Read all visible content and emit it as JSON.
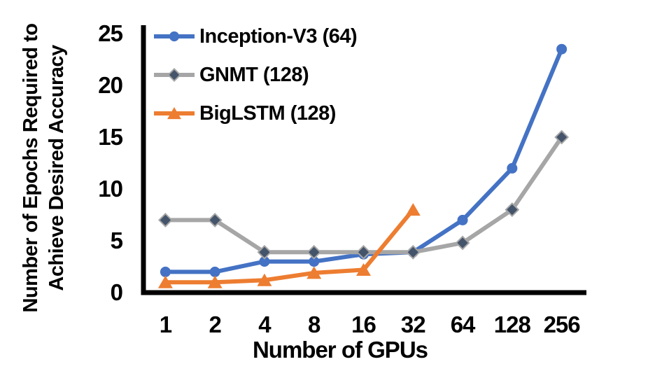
{
  "chart_data": {
    "type": "line",
    "title": "",
    "xlabel": "Number of GPUs",
    "ylabel": "Number of Epochs Required to Achieve Desired Accuracy",
    "ylabel_lines": [
      "Number of Epochs Required to",
      "Achieve Desired Accuracy"
    ],
    "categories": [
      "1",
      "2",
      "4",
      "8",
      "16",
      "32",
      "64",
      "128",
      "256"
    ],
    "x_axis_type": "categorical",
    "yticks": [
      0,
      5,
      10,
      15,
      20,
      25
    ],
    "ylim": [
      0,
      25
    ],
    "grid": false,
    "background": "#ffffff",
    "axis_color": "#000000",
    "legend_position": "top-left-inside",
    "series": [
      {
        "name": "Inception-V3 (64)",
        "color": "#4472C4",
        "marker": "circle",
        "marker_color": "#4472C4",
        "values": [
          2,
          2,
          3,
          3,
          3.7,
          3.9,
          7,
          12,
          23.5
        ]
      },
      {
        "name": "GNMT (128)",
        "color": "#A6A6A6",
        "marker": "diamond",
        "marker_color": "#44546A",
        "values": [
          7,
          7,
          3.9,
          3.9,
          3.9,
          3.9,
          4.8,
          8,
          15
        ]
      },
      {
        "name": "BigLSTM (128)",
        "color": "#ED7D31",
        "marker": "triangle",
        "marker_color": "#ED7D31",
        "values": [
          1,
          1,
          1.2,
          1.9,
          2.2,
          8
        ]
      }
    ]
  }
}
